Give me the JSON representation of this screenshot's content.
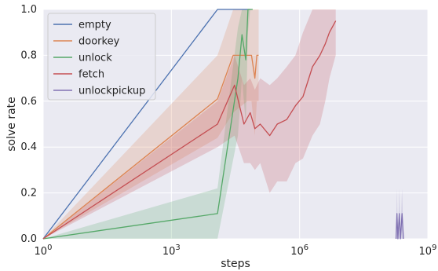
{
  "chart_data": {
    "type": "line",
    "xlabel": "steps",
    "ylabel": "solve rate",
    "xscale": "log",
    "xlim": [
      1,
      1000000000
    ],
    "ylim": [
      0,
      1
    ],
    "grid": true,
    "legend_position": "top-left",
    "x_ticks": [
      {
        "base": "10",
        "exp": "0",
        "value": 1
      },
      {
        "base": "10",
        "exp": "3",
        "value": 1000
      },
      {
        "base": "10",
        "exp": "6",
        "value": 1000000
      },
      {
        "base": "10",
        "exp": "9",
        "value": 1000000000
      }
    ],
    "y_ticks": [
      {
        "label": "0.0",
        "value": 0
      },
      {
        "label": "0.2",
        "value": 0.2
      },
      {
        "label": "0.4",
        "value": 0.4
      },
      {
        "label": "0.6",
        "value": 0.6
      },
      {
        "label": "0.8",
        "value": 0.8
      },
      {
        "label": "1.0",
        "value": 1.0
      }
    ],
    "series": [
      {
        "name": "empty",
        "color": "#4c72b0",
        "x": [
          1,
          12000,
          70000
        ],
        "y": [
          0.0,
          1.0,
          1.0
        ]
      },
      {
        "name": "doorkey",
        "color": "#dd8452",
        "x": [
          1,
          12000,
          28000,
          60000,
          75000,
          90000,
          100000,
          110000
        ],
        "y": [
          0.0,
          0.61,
          0.8,
          0.8,
          0.8,
          0.7,
          0.8,
          0.8
        ],
        "band_upper": [
          0.0,
          0.8,
          1.0,
          1.0,
          1.0,
          1.0,
          1.0,
          1.0
        ],
        "band_lower": [
          0.0,
          0.44,
          0.55,
          0.6,
          0.6,
          0.45,
          0.6,
          0.6
        ]
      },
      {
        "name": "unlock",
        "color": "#55a868",
        "x": [
          1,
          12000,
          36000,
          45000,
          55000,
          62000,
          70000,
          80000
        ],
        "y": [
          0.0,
          0.11,
          0.7,
          0.89,
          0.78,
          1.0,
          1.0,
          1.0
        ],
        "band_upper": [
          0.0,
          0.22,
          0.92,
          1.0,
          1.0,
          1.0,
          1.0,
          1.0
        ],
        "band_lower": [
          0.0,
          0.0,
          0.45,
          0.7,
          0.5,
          0.9,
          1.0,
          1.0
        ]
      },
      {
        "name": "fetch",
        "color": "#c44e52",
        "x": [
          1,
          12000,
          30000,
          50000,
          70000,
          90000,
          120000,
          200000,
          300000,
          500000,
          800000,
          1200000,
          2000000,
          3000000,
          4000000,
          5000000,
          7000000
        ],
        "y": [
          0.0,
          0.5,
          0.67,
          0.5,
          0.55,
          0.48,
          0.5,
          0.45,
          0.5,
          0.52,
          0.58,
          0.62,
          0.75,
          0.8,
          0.85,
          0.9,
          0.95
        ],
        "band_upper": [
          0.0,
          0.6,
          0.8,
          0.67,
          0.7,
          0.65,
          0.7,
          0.67,
          0.7,
          0.75,
          0.8,
          0.9,
          1.0,
          1.0,
          1.0,
          1.0,
          1.0
        ],
        "band_lower": [
          0.0,
          0.4,
          0.45,
          0.33,
          0.33,
          0.3,
          0.33,
          0.2,
          0.25,
          0.25,
          0.33,
          0.35,
          0.45,
          0.5,
          0.6,
          0.7,
          0.8
        ]
      },
      {
        "name": "unlockpickup",
        "color": "#8172b3",
        "x": [
          180000000,
          190000000,
          200000000,
          215000000,
          230000000,
          250000000,
          270000000
        ],
        "y": [
          0.0,
          0.11,
          0.0,
          0.11,
          0.0,
          0.11,
          0.0
        ],
        "band_upper": [
          0.0,
          0.22,
          0.0,
          0.22,
          0.0,
          0.22,
          0.0
        ],
        "band_lower": [
          0.0,
          0.0,
          0.0,
          0.0,
          0.0,
          0.0,
          0.0
        ]
      }
    ]
  }
}
